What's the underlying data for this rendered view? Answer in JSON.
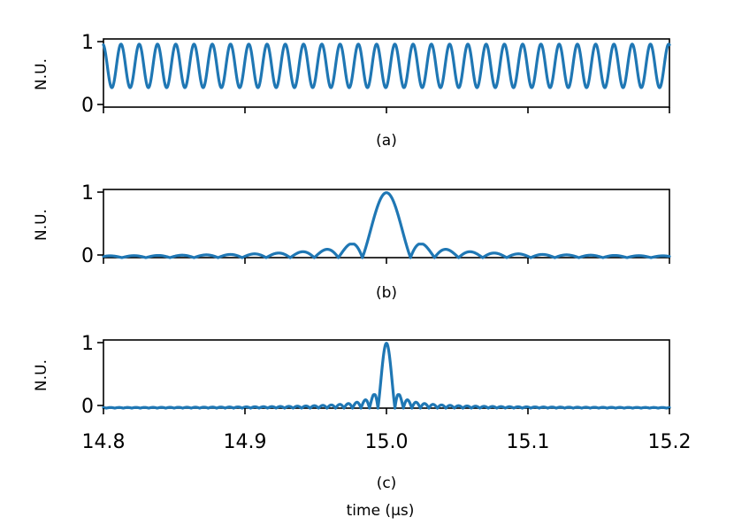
{
  "chart_data": {
    "type": "line",
    "series_color": "#1f77b4",
    "xlabel": "time (μs)",
    "x_ticks": [
      "14.8",
      "14.9",
      "15.0",
      "15.1",
      "15.2"
    ],
    "xlim": [
      14.8,
      15.2
    ],
    "panels": [
      {
        "id": "a",
        "caption": "(a)",
        "ylabel": "N.U.",
        "y_ticks": [
          "0",
          "1"
        ],
        "ylim": [
          0,
          1.05
        ],
        "signal": "periodic",
        "periods_in_window": 31,
        "y_min": 0.3,
        "y_max": 0.97
      },
      {
        "id": "b",
        "caption": "(b)",
        "ylabel": "N.U.",
        "y_ticks": [
          "0",
          "1"
        ],
        "ylim": [
          0,
          1.05
        ],
        "signal": "pulse",
        "peak_x": 15.0,
        "peak_y": 1.0,
        "main_lobe_halfwidth": 0.017,
        "sidelobe_peak": 0.22
      },
      {
        "id": "c",
        "caption": "(c)",
        "ylabel": "N.U.",
        "y_ticks": [
          "0",
          "1"
        ],
        "ylim": [
          0,
          1.05
        ],
        "signal": "pulse",
        "peak_x": 15.0,
        "peak_y": 1.0,
        "main_lobe_halfwidth": 0.006,
        "sidelobe_peak": 0.22
      }
    ]
  }
}
